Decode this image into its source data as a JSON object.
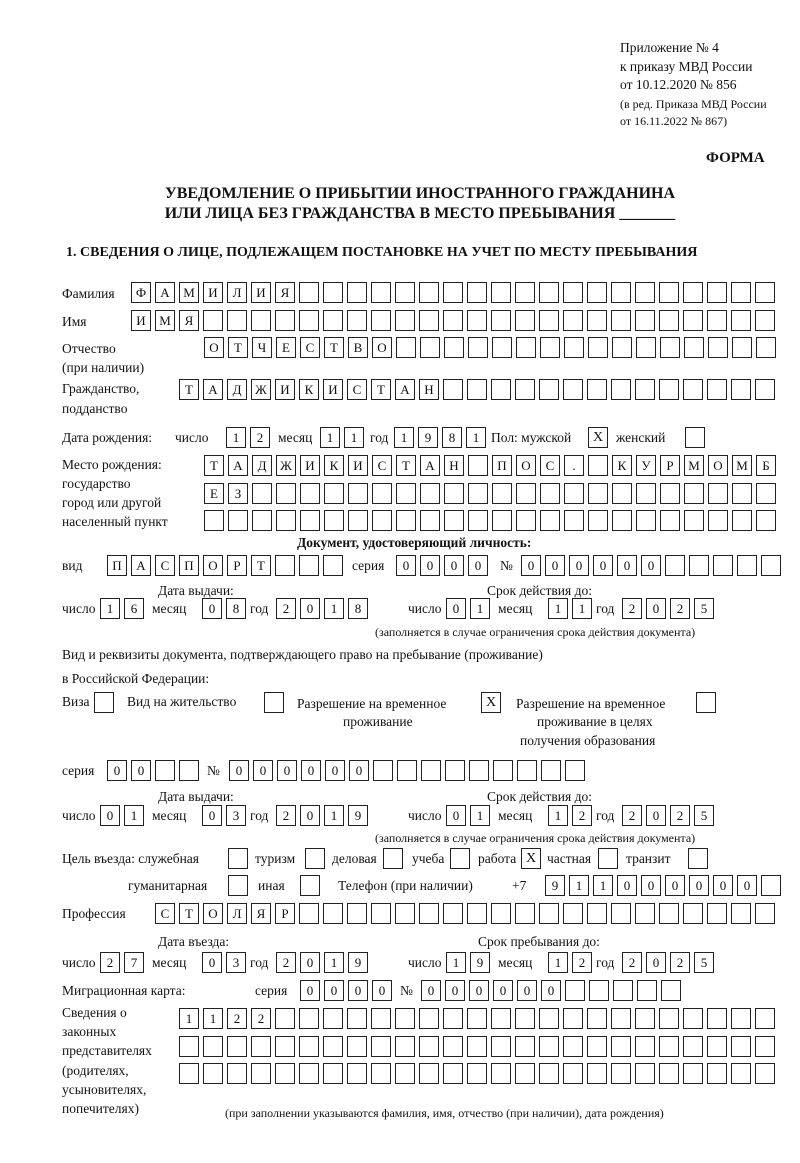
{
  "header": {
    "line1": "Приложение № 4",
    "line2": "к приказу МВД России",
    "line3": "от 10.12.2020 № 856",
    "line4": "(в ред. Приказа МВД России",
    "line5": "от 16.11.2022 № 867)",
    "forma": "ФОРМА"
  },
  "title": {
    "line1": "УВЕДОМЛЕНИЕ О ПРИБЫТИИ ИНОСТРАННОГО ГРАЖДАНИНА",
    "line2": "ИЛИ ЛИЦА БЕЗ ГРАЖДАНСТВА В МЕСТО ПРЕБЫВАНИЯ _______"
  },
  "section1": "1. СВЕДЕНИЯ О ЛИЦЕ, ПОДЛЕЖАЩЕМ ПОСТАНОВКЕ НА УЧЕТ ПО МЕСТУ ПРЕБЫВАНИЯ",
  "labels": {
    "surname": "Фамилия",
    "name": "Имя",
    "patronymic": "Отчество",
    "patronymic2": "(при наличии)",
    "citizenship": "Гражданство,",
    "citizenship2": "подданство",
    "birth_date": "Дата рождения:",
    "day": "число",
    "month": "месяц",
    "year": "год",
    "sex": "Пол: мужской",
    "female": "женский",
    "birthplace1": "Место рождения:",
    "birthplace2": "государство",
    "birthplace3": "город или другой",
    "birthplace4": "населенный пункт",
    "id_doc": "Документ, удостоверяющий личность:",
    "kind": "вид",
    "series": "серия",
    "number": "№",
    "issue_date": "Дата выдачи:",
    "valid_until": "Срок действия до:",
    "validity_note": "(заполняется в случае ограничения срока действия документа)",
    "stay_doc1": "Вид и реквизиты документа, подтверждающего право на пребывание (проживание)",
    "stay_doc2": "в Российской Федерации:",
    "visa": "Виза",
    "residence": "Вид на жительство",
    "trp1": "Разрешение на временное",
    "trp2": "проживание",
    "trp_edu1": "Разрешение на временное",
    "trp_edu2": "проживание в целях",
    "trp_edu3": "получения образования",
    "purpose": "Цель въезда: служебная",
    "tourism": "туризм",
    "business": "деловая",
    "study": "учеба",
    "work": "работа",
    "private": "частная",
    "transit": "транзит",
    "humanitarian": "гуманитарная",
    "other": "иная",
    "phone": "Телефон (при наличии)",
    "phone_prefix": "+7",
    "profession": "Профессия",
    "entry_date": "Дата въезда:",
    "stay_until": "Срок пребывания до:",
    "migration_card": "Миграционная карта:",
    "rep1": "Сведения о",
    "rep2": "законных",
    "rep3": "представителях",
    "rep4": "(родителях,",
    "rep5": "усыновителях,",
    "rep6": "попечителях)",
    "rep_note": "(при заполнении указываются фамилия, имя, отчество (при наличии), дата рождения)"
  },
  "values": {
    "surname": "ФАМИЛИЯ",
    "name": "ИМЯ",
    "patronymic": "ОТЧЕСТВО",
    "citizenship": "ТАДЖИКИСТАН",
    "birth_day": "12",
    "birth_month": "11",
    "birth_year": "1981",
    "sex_male": "X",
    "sex_female": "",
    "birthplace1": "ТАДЖИКИСТАН ПОС. КУРМОМБ",
    "birthplace2": "ЕЗ",
    "birthplace3": "",
    "id_kind": "ПАСПОРТ",
    "id_series": "0000",
    "id_number": "000000",
    "id_issue_day": "16",
    "id_issue_month": "08",
    "id_issue_year": "2018",
    "id_valid_day": "01",
    "id_valid_month": "11",
    "id_valid_year": "2025",
    "visa": "",
    "residence": "",
    "trp": "X",
    "trp_edu": "",
    "stay_series": "00",
    "stay_number": "000000",
    "stay_issue_day": "01",
    "stay_issue_month": "03",
    "stay_issue_year": "2019",
    "stay_valid_day": "01",
    "stay_valid_month": "12",
    "stay_valid_year": "2025",
    "purpose_service": "",
    "purpose_tourism": "",
    "purpose_business": "",
    "purpose_study": "",
    "purpose_work": "X",
    "purpose_private": "",
    "purpose_transit": "",
    "purpose_humanitarian": "",
    "purpose_other": "",
    "phone": "911000000",
    "profession": "СТОЛЯР",
    "entry_day": "27",
    "entry_month": "03",
    "entry_year": "2019",
    "stay_day": "19",
    "stay_month": "12",
    "stay_year": "2025",
    "mc_series": "0000",
    "mc_number": "000000",
    "rep1": "1122",
    "rep2": "",
    "rep3": ""
  }
}
